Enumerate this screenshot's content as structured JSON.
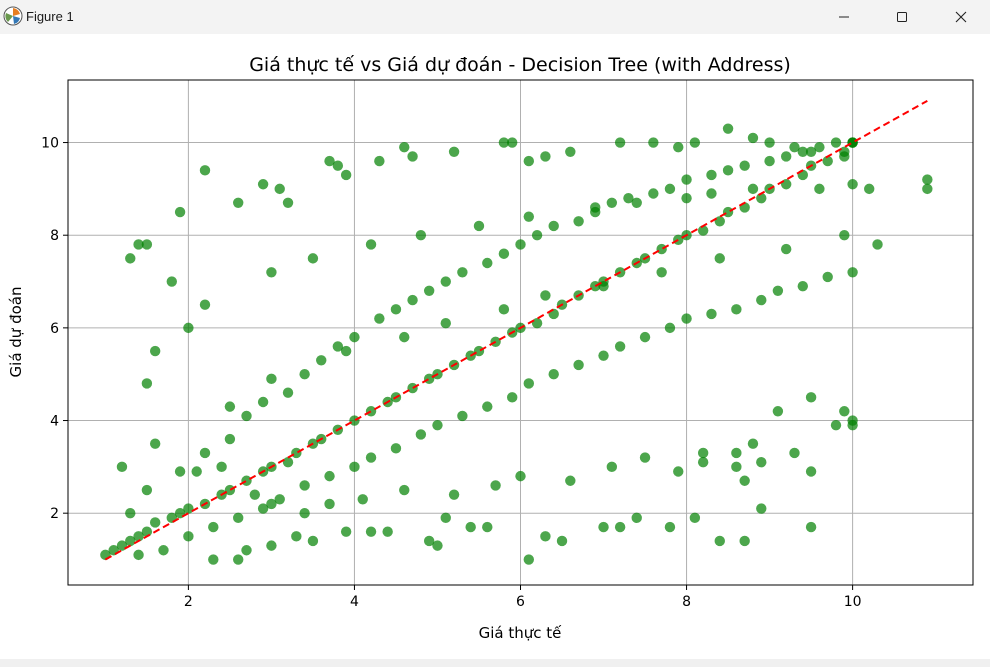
{
  "window": {
    "title": "Figure 1",
    "icons": {
      "app": "matplotlib-icon",
      "minimize": "minimize-icon",
      "maximize": "maximize-icon",
      "close": "close-icon"
    }
  },
  "chart_data": {
    "type": "scatter",
    "title": "Giá thực tế vs Giá dự đoán - Decision Tree (with Address)",
    "xlabel": "Giá thực tế",
    "ylabel": "Giá dự đoán",
    "xlim": [
      0.55,
      11.45
    ],
    "ylim": [
      0.45,
      11.35
    ],
    "xticks": [
      2,
      4,
      6,
      8,
      10
    ],
    "yticks": [
      2,
      4,
      6,
      8,
      10
    ],
    "grid": true,
    "point_color": "#008000",
    "point_alpha": 0.7,
    "series": [
      {
        "label": "",
        "x": [
          1.0,
          1.1,
          1.2,
          1.3,
          1.4,
          1.5,
          1.6,
          1.8,
          1.9,
          2.0,
          2.2,
          2.4,
          2.5,
          2.7,
          2.9,
          3.0,
          3.2,
          3.3,
          3.5,
          3.6,
          3.8,
          4.0,
          4.2,
          4.4,
          4.5,
          4.7,
          4.9,
          5.0,
          5.2,
          5.4,
          5.5,
          5.7,
          5.9,
          6.0,
          6.2,
          6.4,
          6.5,
          6.7,
          6.9,
          7.0,
          7.2,
          7.4,
          7.5,
          7.7,
          7.9,
          8.0,
          8.2,
          8.4,
          8.5,
          8.7,
          8.9,
          9.0,
          9.2,
          9.4,
          9.5,
          9.7,
          9.9,
          10.0,
          1.3,
          1.5,
          1.9,
          2.2,
          2.5,
          2.7,
          2.9,
          3.2,
          3.4,
          3.6,
          3.8,
          4.0,
          4.3,
          4.5,
          4.7,
          4.9,
          5.1,
          5.3,
          5.6,
          5.8,
          6.0,
          6.2,
          6.4,
          6.7,
          6.9,
          7.1,
          7.3,
          7.6,
          7.8,
          8.0,
          8.3,
          8.5,
          8.7,
          9.0,
          9.2,
          9.4,
          9.6,
          9.8,
          10.0,
          1.4,
          1.7,
          2.0,
          2.3,
          2.6,
          2.9,
          3.1,
          3.4,
          3.7,
          4.0,
          4.2,
          4.5,
          4.8,
          5.0,
          5.3,
          5.6,
          5.9,
          6.1,
          6.4,
          6.7,
          7.0,
          7.2,
          7.5,
          7.8,
          8.0,
          8.3,
          8.6,
          8.9,
          9.1,
          9.4,
          9.7,
          10.0,
          1.4,
          1.5,
          1.3,
          1.8,
          1.9,
          2.2,
          2.6,
          2.9,
          3.1,
          3.2,
          3.7,
          3.8,
          3.9,
          4.3,
          4.6,
          4.7,
          5.2,
          5.8,
          5.9,
          6.1,
          6.3,
          6.6,
          7.2,
          7.6,
          7.9,
          8.1,
          8.5,
          8.8,
          9.0,
          9.3,
          9.5,
          9.9,
          10.0,
          10.2,
          10.3,
          10.9,
          10.9,
          2.3,
          2.6,
          2.7,
          3.0,
          3.3,
          3.5,
          3.9,
          4.2,
          4.4,
          4.9,
          5.0,
          5.1,
          5.4,
          5.6,
          6.1,
          6.3,
          6.5,
          7.0,
          7.2,
          7.4,
          7.8,
          8.1,
          8.4,
          8.7,
          8.9,
          9.3,
          9.5,
          9.8,
          10.0,
          2.1,
          2.4,
          2.8,
          3.0,
          3.4,
          3.7,
          4.1,
          4.6,
          5.2,
          5.7,
          6.0,
          6.6,
          7.1,
          7.5,
          7.9,
          8.2,
          8.6,
          8.8,
          9.1,
          9.5,
          9.9,
          10.0,
          8.2,
          8.6,
          8.9,
          9.5,
          8.7,
          1.5,
          1.6,
          2.0,
          2.2,
          3.0,
          3.5,
          4.2,
          4.8,
          5.5,
          6.1,
          6.9,
          7.4,
          8.0,
          8.3,
          8.8,
          9.6,
          10.0,
          1.2,
          1.6,
          2.5,
          3.0,
          3.9,
          4.6,
          5.1,
          5.8,
          6.3,
          7.0,
          7.7,
          8.4,
          9.2,
          9.9
        ],
        "y": [
          1.1,
          1.2,
          1.3,
          1.4,
          1.5,
          1.6,
          1.8,
          1.9,
          2.0,
          2.1,
          2.2,
          2.4,
          2.5,
          2.7,
          2.9,
          3.0,
          3.1,
          3.3,
          3.5,
          3.6,
          3.8,
          4.0,
          4.2,
          4.4,
          4.5,
          4.7,
          4.9,
          5.0,
          5.2,
          5.4,
          5.5,
          5.7,
          5.9,
          6.0,
          6.1,
          6.3,
          6.5,
          6.7,
          6.9,
          7.0,
          7.2,
          7.4,
          7.5,
          7.7,
          7.9,
          8.0,
          8.1,
          8.3,
          8.5,
          8.6,
          8.8,
          9.0,
          9.1,
          9.3,
          9.5,
          9.6,
          9.8,
          10.0,
          2.0,
          2.5,
          2.9,
          3.3,
          3.6,
          4.1,
          4.4,
          4.6,
          5.0,
          5.3,
          5.6,
          5.8,
          6.2,
          6.4,
          6.6,
          6.8,
          7.0,
          7.2,
          7.4,
          7.6,
          7.8,
          8.0,
          8.2,
          8.3,
          8.5,
          8.7,
          8.8,
          8.9,
          9.0,
          9.2,
          9.3,
          9.4,
          9.5,
          9.6,
          9.7,
          9.8,
          9.9,
          10.0,
          10.0,
          1.1,
          1.2,
          1.5,
          1.7,
          1.9,
          2.1,
          2.3,
          2.6,
          2.8,
          3.0,
          3.2,
          3.4,
          3.7,
          3.9,
          4.1,
          4.3,
          4.5,
          4.8,
          5.0,
          5.2,
          5.4,
          5.6,
          5.8,
          6.0,
          6.2,
          6.3,
          6.4,
          6.6,
          6.8,
          6.9,
          7.1,
          7.2,
          7.8,
          7.8,
          7.5,
          7.0,
          8.5,
          9.4,
          8.7,
          9.1,
          9.0,
          8.7,
          9.6,
          9.5,
          9.3,
          9.6,
          9.9,
          9.7,
          9.8,
          10.0,
          10.0,
          9.6,
          9.7,
          9.8,
          10.0,
          10.0,
          9.9,
          10.0,
          10.3,
          10.1,
          10.0,
          9.9,
          9.8,
          9.7,
          10.0,
          9.0,
          7.8,
          9.2,
          9.0,
          1.0,
          1.0,
          1.2,
          1.3,
          1.5,
          1.4,
          1.6,
          1.6,
          1.6,
          1.4,
          1.3,
          1.9,
          1.7,
          1.7,
          1.0,
          1.5,
          1.4,
          1.7,
          1.7,
          1.9,
          1.7,
          1.9,
          1.4,
          1.4,
          2.1,
          3.3,
          1.7,
          3.9,
          4.0,
          2.9,
          3.0,
          2.4,
          2.2,
          2.0,
          2.2,
          2.3,
          2.5,
          2.4,
          2.6,
          2.8,
          2.7,
          3.0,
          3.2,
          2.9,
          3.1,
          3.3,
          3.5,
          4.2,
          4.5,
          4.2,
          3.9,
          3.3,
          3.0,
          3.1,
          2.9,
          2.7,
          4.8,
          5.5,
          6.0,
          6.5,
          7.2,
          7.5,
          7.8,
          8.0,
          8.2,
          8.4,
          8.6,
          8.7,
          8.8,
          8.9,
          9.0,
          9.0,
          9.1,
          3.0,
          3.5,
          4.3,
          4.9,
          5.5,
          5.8,
          6.1,
          6.4,
          6.7,
          6.9,
          7.2,
          7.5,
          7.7,
          8.0
        ]
      }
    ],
    "reference_line": {
      "x": [
        1.0,
        10.9
      ],
      "y": [
        1.0,
        10.9
      ],
      "color": "#ff0000",
      "style": "dashed"
    }
  }
}
